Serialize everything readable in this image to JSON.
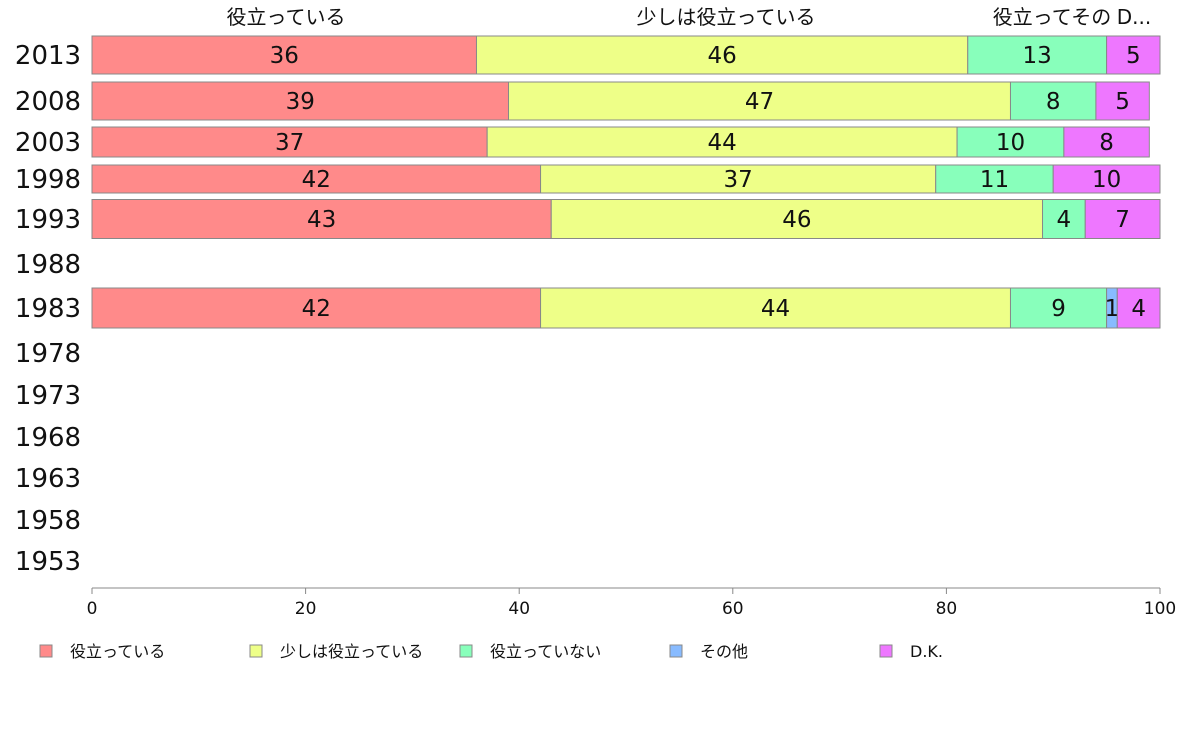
{
  "chart_data": {
    "type": "bar",
    "orientation": "horizontal",
    "stacked": true,
    "categories": [
      "2013",
      "2008",
      "2003",
      "1998",
      "1993",
      "1988",
      "1983",
      "1978",
      "1973",
      "1968",
      "1963",
      "1958",
      "1953"
    ],
    "series": [
      {
        "name": "役立っている",
        "color": "#ff8a8a",
        "values": [
          36,
          39,
          37,
          42,
          43,
          null,
          42,
          null,
          null,
          null,
          null,
          null,
          null
        ]
      },
      {
        "name": "少しは役立っている",
        "color": "#eeff88",
        "values": [
          46,
          47,
          44,
          37,
          46,
          null,
          44,
          null,
          null,
          null,
          null,
          null,
          null
        ]
      },
      {
        "name": "役立っていない",
        "color": "#88ffbb",
        "values": [
          13,
          8,
          10,
          11,
          4,
          null,
          9,
          null,
          null,
          null,
          null,
          null,
          null
        ]
      },
      {
        "name": "その他",
        "color": "#88bbff",
        "values": [
          0,
          0,
          0,
          0,
          0,
          null,
          1,
          null,
          null,
          null,
          null,
          null,
          null
        ]
      },
      {
        "name": "D.K.",
        "color": "#ee77ff",
        "values": [
          5,
          5,
          8,
          10,
          7,
          null,
          4,
          null,
          null,
          null,
          null,
          null,
          null
        ]
      }
    ],
    "top_labels": [
      "役立っている",
      "少しは役立っている",
      "役立ってその",
      "D..."
    ],
    "xlim": [
      0,
      100
    ],
    "xticks": [
      0,
      20,
      40,
      60,
      80,
      100
    ],
    "grid": false,
    "legend_position": "bottom",
    "bar_border_color": "#888888"
  }
}
